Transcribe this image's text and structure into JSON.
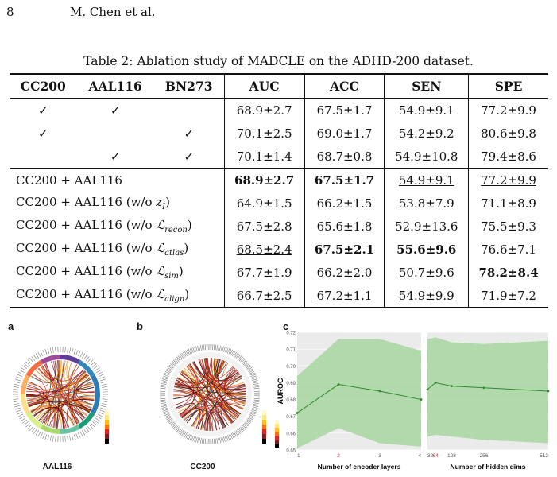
{
  "header": {
    "page_number": "8",
    "authors": "M. Chen et al."
  },
  "caption": "Table 2: Ablation study of MADCLE on the ADHD-200 dataset.",
  "table": {
    "headers": [
      "CC200",
      "AAL116",
      "BN273",
      "AUC",
      "ACC",
      "SEN",
      "SPE"
    ],
    "check_rows": [
      {
        "checks": [
          "✓",
          "✓",
          ""
        ],
        "auc": "68.9±2.7",
        "acc": "67.5±1.7",
        "sen": "54.9±9.1",
        "spe": "77.2±9.9"
      },
      {
        "checks": [
          "✓",
          "",
          "✓"
        ],
        "auc": "70.1±2.5",
        "acc": "69.0±1.7",
        "sen": "54.2±9.2",
        "spe": "80.6±9.8"
      },
      {
        "checks": [
          "",
          "✓",
          "✓"
        ],
        "auc": "70.1±1.4",
        "acc": "68.7±0.8",
        "sen": "54.9±10.8",
        "spe": "79.4±8.6"
      }
    ],
    "ablation_rows": [
      {
        "base": "CC200 + AAL116",
        "open": "",
        "sym": "",
        "sub": "",
        "close": "",
        "auc": "68.9±2.7",
        "acc": "67.5±1.7",
        "sen": "54.9±9.1",
        "spe": "77.2±9.9"
      },
      {
        "base": "CC200 + AAL116",
        "open": " (w/o ",
        "sym": "z",
        "sub": "I",
        "close": ")",
        "auc": "64.9±1.5",
        "acc": "66.2±1.5",
        "sen": "53.8±7.9",
        "spe": "71.1±8.9"
      },
      {
        "base": "CC200 + AAL116",
        "open": " (w/o ",
        "sym": "ℒ",
        "sub": "recon",
        "close": ")",
        "auc": "67.5±2.8",
        "acc": "65.6±1.8",
        "sen": "52.9±13.6",
        "spe": "75.5±9.3"
      },
      {
        "base": "CC200 + AAL116",
        "open": " (w/o ",
        "sym": "ℒ",
        "sub": "atlas",
        "close": ")",
        "auc": "68.5±2.4",
        "acc": "67.5±2.1",
        "sen": "55.6±9.6",
        "spe": "76.6±7.1"
      },
      {
        "base": "CC200 + AAL116",
        "open": " (w/o ",
        "sym": "ℒ",
        "sub": "sim",
        "close": ")",
        "auc": "67.7±1.9",
        "acc": "66.2±2.0",
        "sen": "50.7±9.6",
        "spe": "78.2±8.4"
      },
      {
        "base": "CC200 + AAL116",
        "open": " (w/o ",
        "sym": "ℒ",
        "sub": "align",
        "close": ")",
        "auc": "66.7±2.5",
        "acc": "67.2±1.1",
        "sen": "54.9±9.9",
        "spe": "71.9±7.2"
      }
    ]
  },
  "figure": {
    "panel_letters": [
      "a",
      "b",
      "c"
    ],
    "panel_a_label": "AAL116",
    "panel_b_label": "CC200",
    "colors": {
      "band_fill": "#a8d6a0",
      "line": "#2e8b2e",
      "panel_bg": "#ebebeb",
      "grid": "#ffffff"
    }
  },
  "chart_data": [
    {
      "type": "line",
      "xlabel": "Number of encoder layers",
      "ylabel": "AUROC",
      "x": [
        1,
        2,
        3,
        4
      ],
      "x_tick_labels": [
        "1",
        "2",
        "3",
        "4"
      ],
      "highlighted_tick": "2",
      "ylim": [
        0.65,
        0.72
      ],
      "y_ticks": [
        "0.65",
        "0.66",
        "0.67",
        "0.68",
        "0.69",
        "0.70",
        "0.71",
        "0.72"
      ],
      "mean": [
        0.672,
        0.689,
        0.685,
        0.68
      ],
      "upper": [
        0.694,
        0.716,
        0.716,
        0.709
      ],
      "lower": [
        0.651,
        0.663,
        0.654,
        0.652
      ],
      "grid": true
    },
    {
      "type": "line",
      "xlabel": "Number of hidden dims",
      "ylabel": "",
      "x": [
        32,
        64,
        128,
        256,
        512
      ],
      "x_tick_labels": [
        "32",
        "64",
        "128",
        "256",
        "512"
      ],
      "highlighted_tick": "64",
      "ylim": [
        0.65,
        0.72
      ],
      "mean": [
        0.686,
        0.69,
        0.688,
        0.687,
        0.685
      ],
      "upper": [
        0.716,
        0.717,
        0.714,
        0.713,
        0.715
      ],
      "lower": [
        0.658,
        0.659,
        0.658,
        0.656,
        0.654
      ],
      "grid": true
    }
  ]
}
